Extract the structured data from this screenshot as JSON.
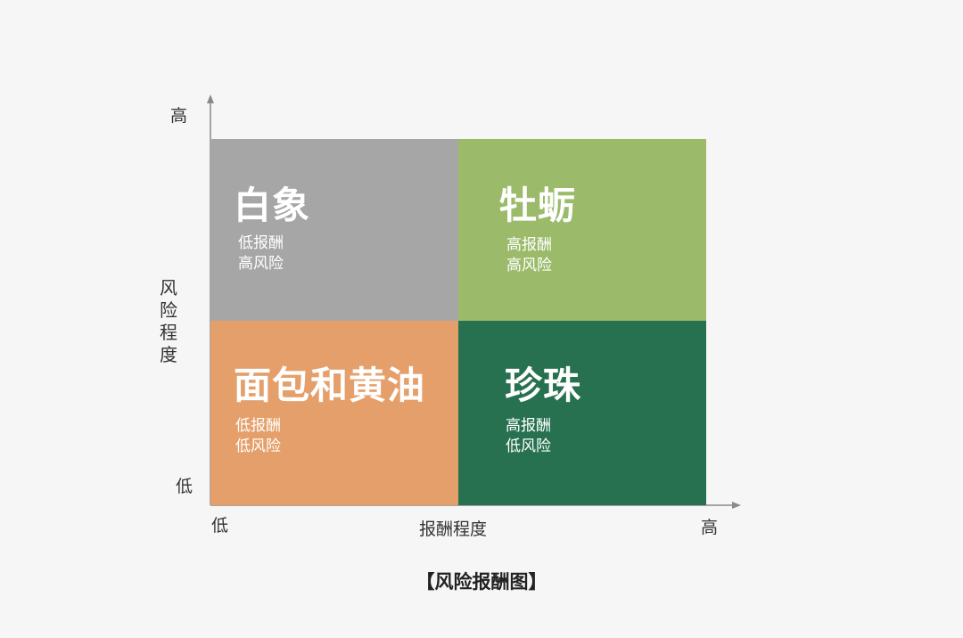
{
  "colors": {
    "background": "#f6f6f6",
    "axis": "#8a8a8a",
    "white_elephant": "#a6a6a6",
    "oyster": "#9bbb6b",
    "bread_butter": "#e59f6a",
    "pearl": "#277150"
  },
  "axes": {
    "y_title": "风险程度",
    "y_high": "高",
    "y_low": "低",
    "x_title": "报酬程度",
    "x_low": "低",
    "x_high": "高"
  },
  "quadrants": {
    "top_left": {
      "name": "白象",
      "reward": "低报酬",
      "risk": "高风险"
    },
    "top_right": {
      "name": "牡蛎",
      "reward": "高报酬",
      "risk": "高风险"
    },
    "bottom_left": {
      "name": "面包和黄油",
      "reward": "低报酬",
      "risk": "低风险"
    },
    "bottom_right": {
      "name": "珍珠",
      "reward": "高报酬",
      "risk": "低风险"
    }
  },
  "caption": "【风险报酬图】"
}
